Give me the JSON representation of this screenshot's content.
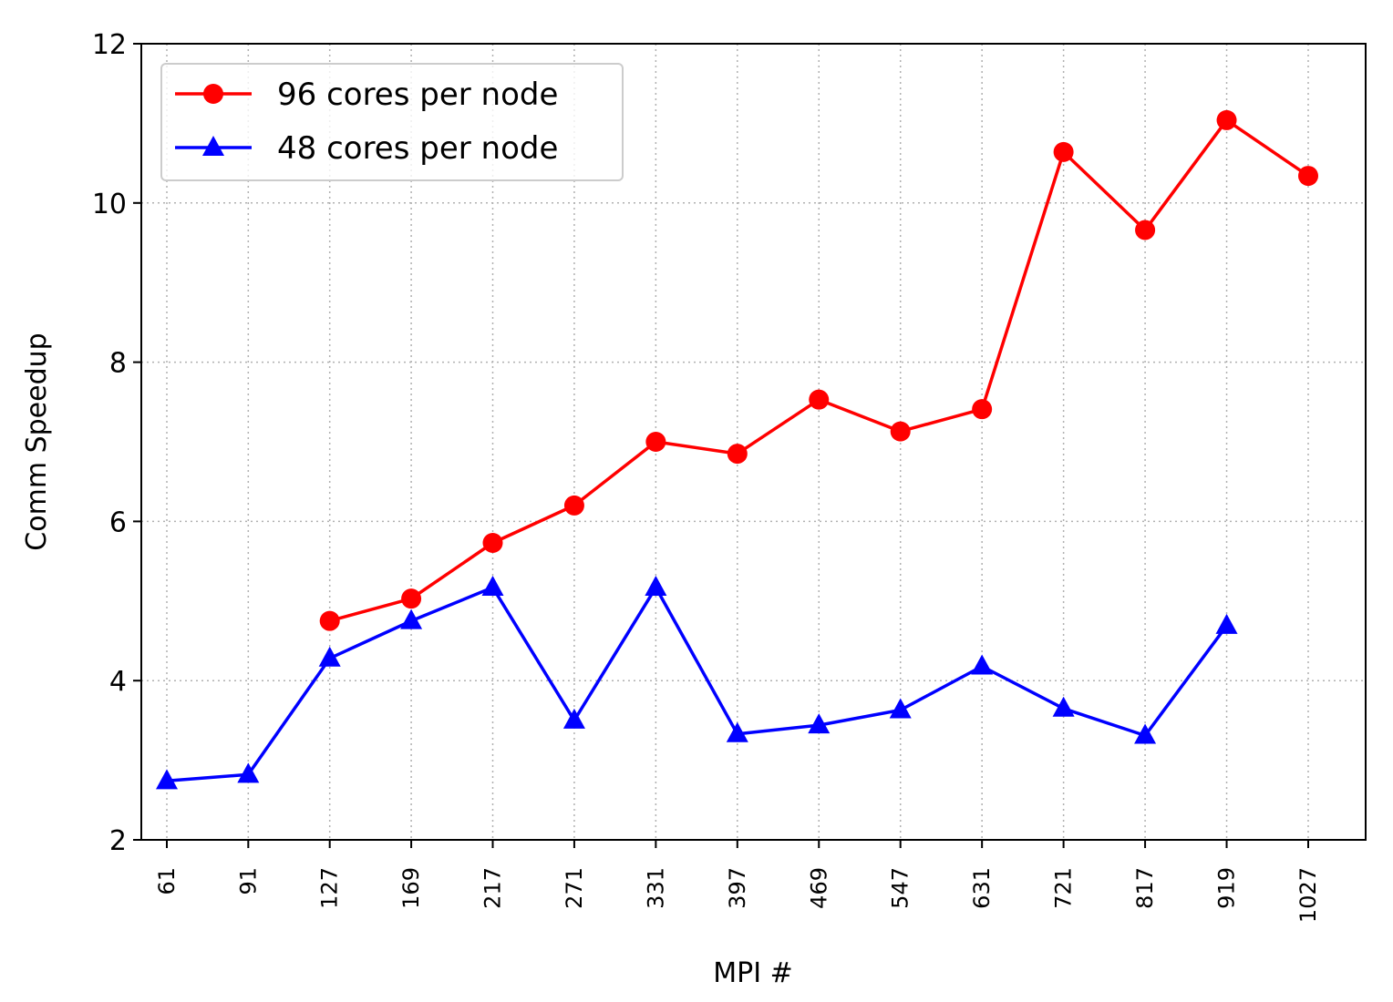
{
  "chart_data": {
    "type": "line",
    "title": "",
    "xlabel": "MPI #",
    "ylabel": "Comm Speedup",
    "ylim": [
      2,
      12
    ],
    "yticks": [
      "2",
      "4",
      "6",
      "8",
      "10",
      "12"
    ],
    "x": [
      61,
      91,
      127,
      169,
      217,
      271,
      331,
      397,
      469,
      547,
      631,
      721,
      817,
      919,
      1027
    ],
    "x_tick_labels": [
      "61",
      "91",
      "127",
      "169",
      "217",
      "271",
      "331",
      "397",
      "469",
      "547",
      "631",
      "721",
      "817",
      "919",
      "1027"
    ],
    "x_scale": "sqrt",
    "grid": true,
    "legend_position": "upper-left",
    "series": [
      {
        "name": "96 cores per node",
        "color": "#ff0000",
        "marker": "circle",
        "x": [
          127,
          169,
          217,
          271,
          331,
          397,
          469,
          547,
          631,
          721,
          817,
          919,
          1027
        ],
        "values": [
          4.75,
          5.03,
          5.73,
          6.2,
          7.0,
          6.85,
          7.53,
          7.13,
          7.41,
          10.64,
          9.66,
          11.04,
          10.34
        ]
      },
      {
        "name": "48 cores per node",
        "color": "#0000ff",
        "marker": "triangle",
        "x": [
          61,
          91,
          127,
          169,
          217,
          271,
          331,
          397,
          469,
          547,
          631,
          721,
          817,
          919
        ],
        "values": [
          2.74,
          2.82,
          4.28,
          4.75,
          5.17,
          3.5,
          5.17,
          3.33,
          3.44,
          3.63,
          4.18,
          3.65,
          3.31,
          4.69
        ]
      }
    ]
  }
}
